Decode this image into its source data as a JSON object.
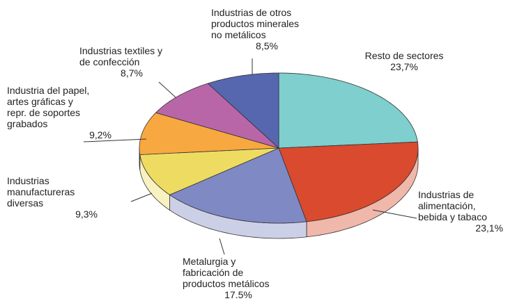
{
  "chart_data": {
    "type": "pie",
    "categories": [
      "Resto de sectores",
      "Industrias de\nalimentación,\nbebida y tabaco",
      "Metalurgia y\nfabricación de\nproductos metálicos",
      "Industrias\nmanufactureras\ndiversas",
      "Industria del papel,\nartes gráficas y\nrepr. de soportes\ngrabados",
      "Industrias textiles y\nde confección",
      "Industrias de otros\nproductos minerales\nno metálicos"
    ],
    "values": [
      23.7,
      23.1,
      17.5,
      9.3,
      9.2,
      8.7,
      8.5
    ],
    "value_labels": [
      "23,7%",
      "23,1%",
      "17.5%",
      "9,3%",
      "9,2%",
      "8,7%",
      "8,5%"
    ],
    "colors": [
      "#7ecfce",
      "#d94a2e",
      "#7f89c4",
      "#eedc62",
      "#f8a840",
      "#b966a9",
      "#5667b0"
    ]
  }
}
